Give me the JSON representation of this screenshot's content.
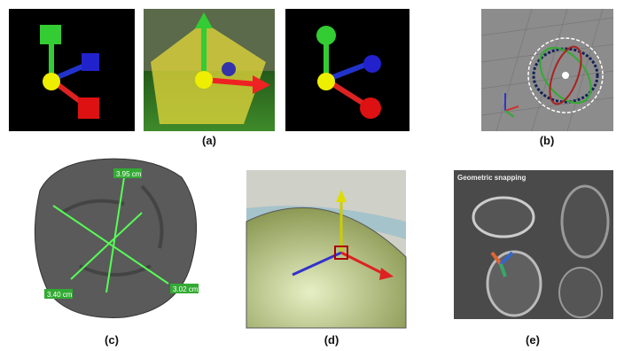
{
  "panels": [
    {
      "label": "(a)"
    },
    {
      "label": "(b)"
    },
    {
      "label": "(c)",
      "measurements": [
        "3.95 cm",
        "3.40 cm",
        "3.02 cm"
      ]
    },
    {
      "label": "(d)"
    },
    {
      "label": "(e)",
      "caption": "Geometric snapping"
    }
  ]
}
